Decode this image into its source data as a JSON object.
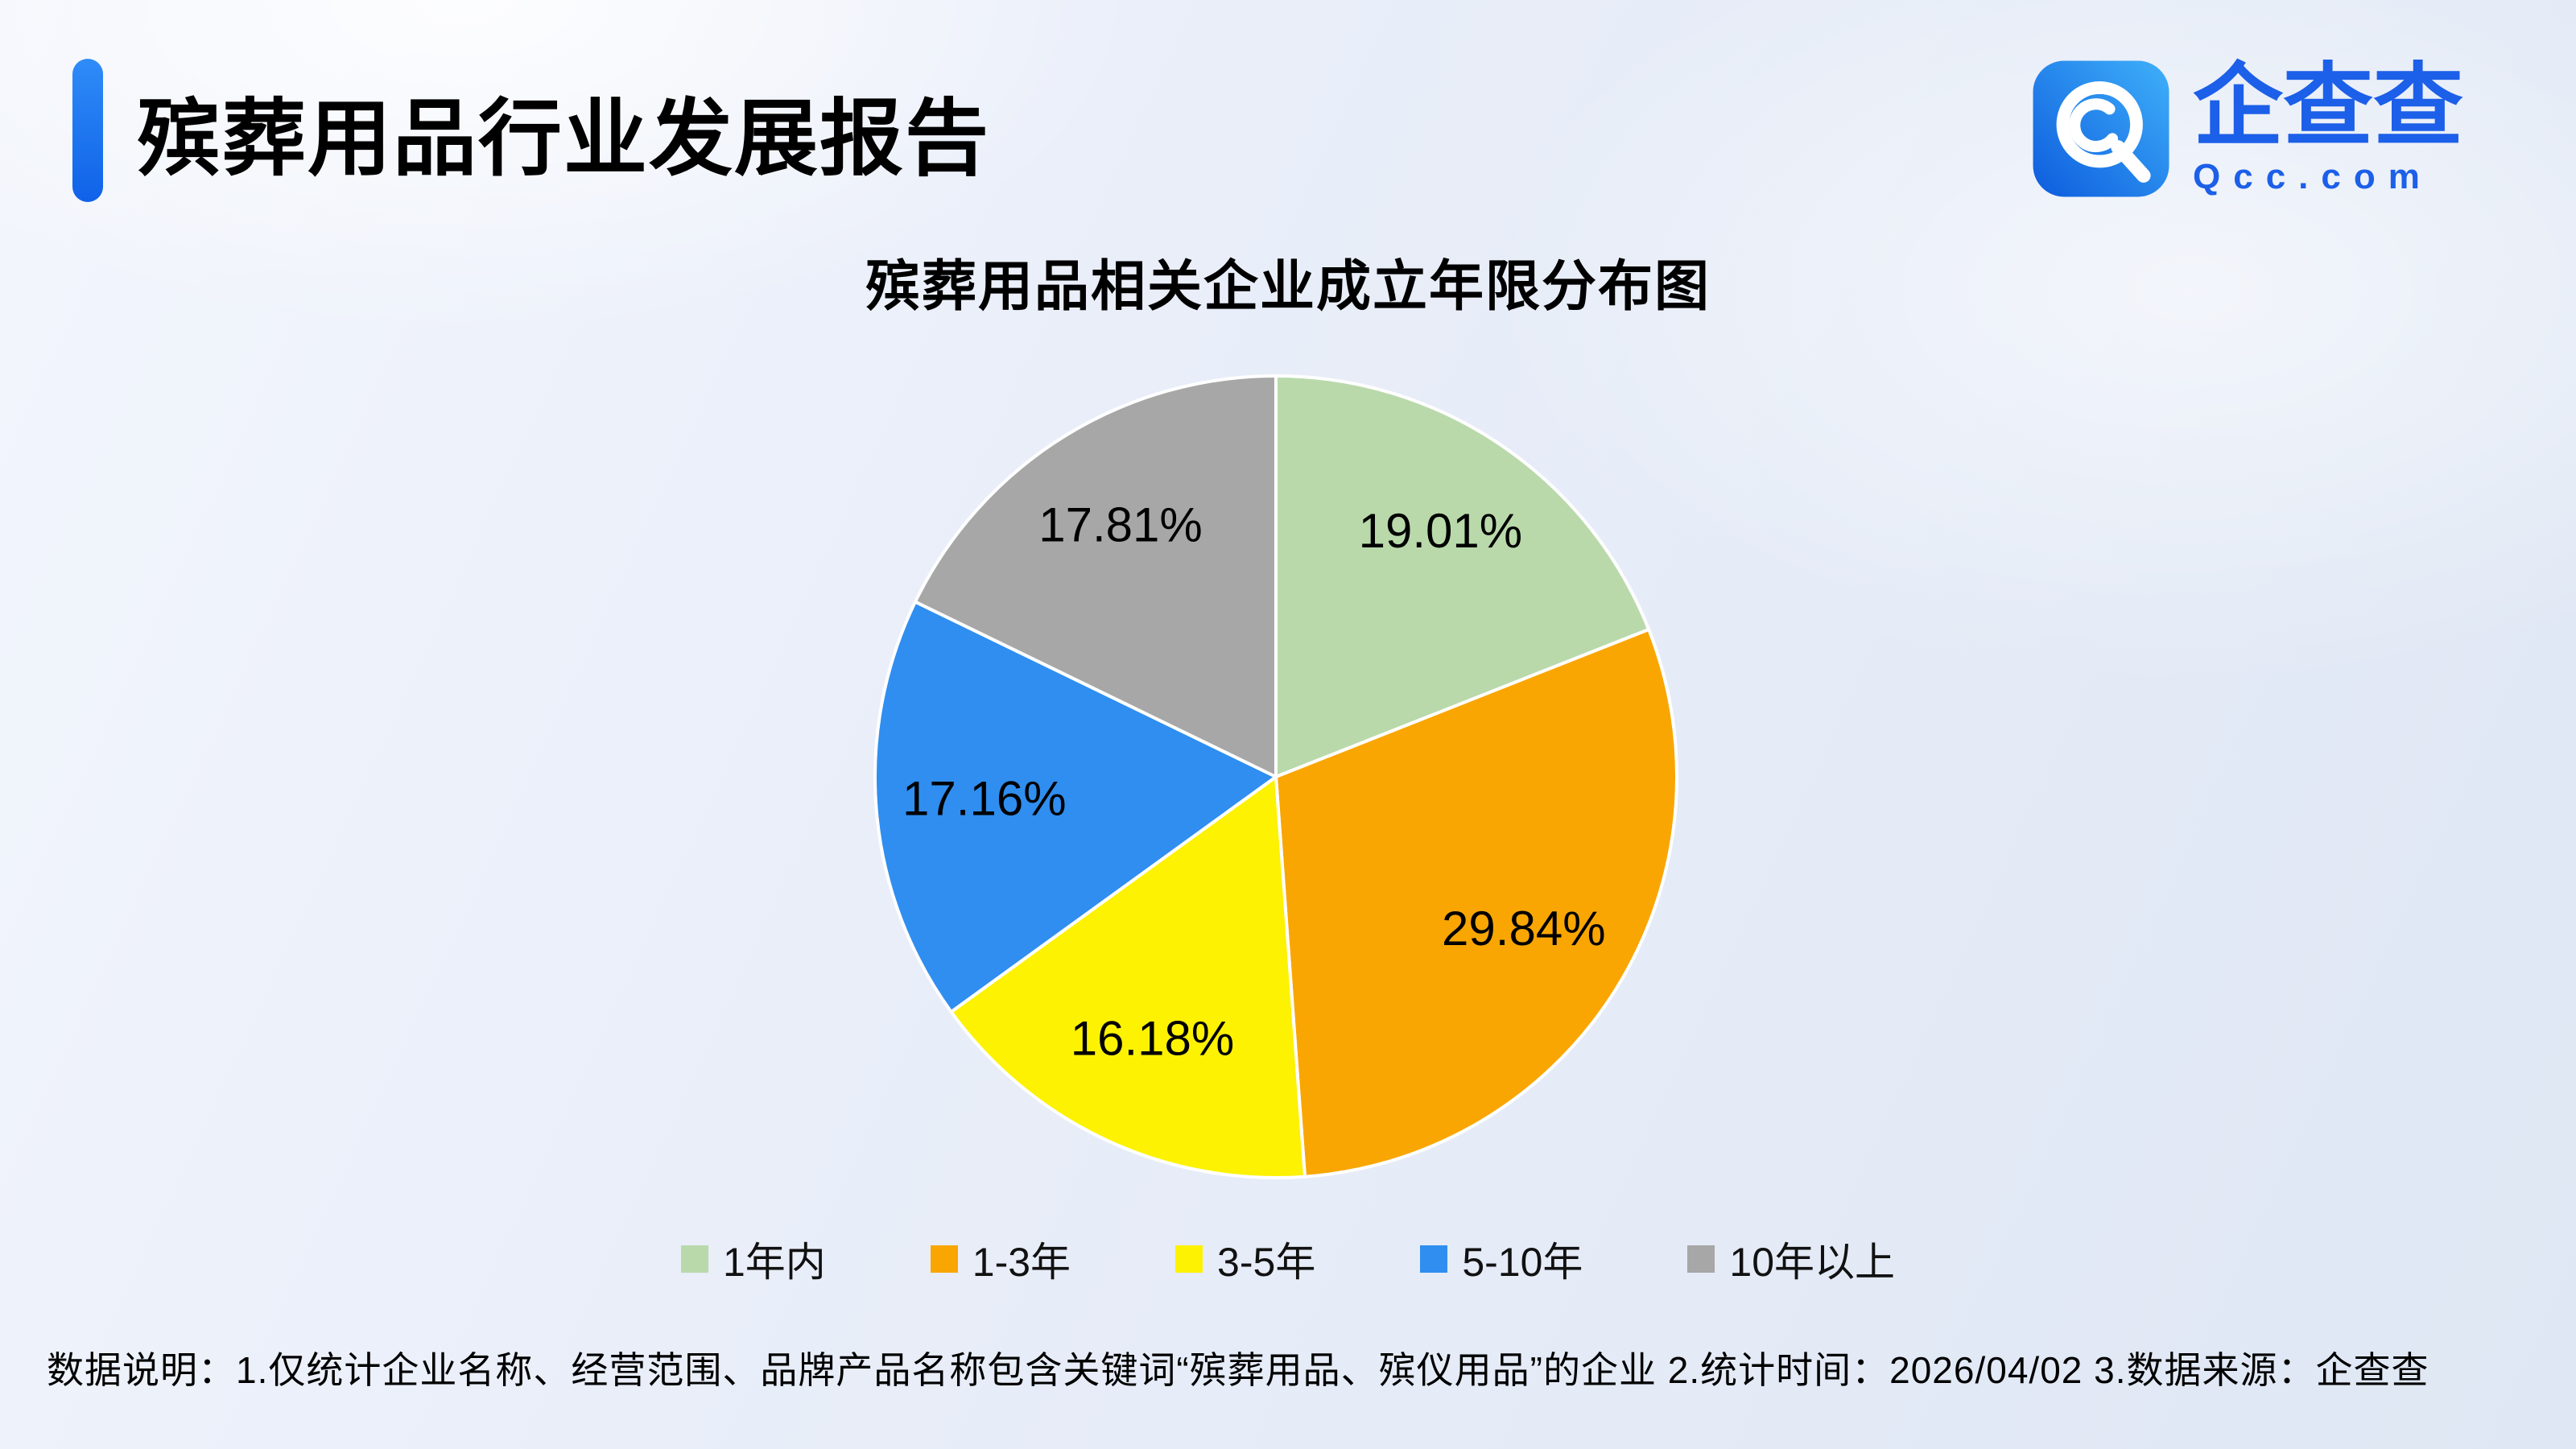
{
  "page": {
    "background_top": "#f3f6fc",
    "background_bottom": "#dfe7f4"
  },
  "header": {
    "title": "殡葬用品行业发展报告",
    "accent_color": "#1673f0"
  },
  "logo": {
    "brand_cn": "企查查",
    "brand_en": "Qcc.com",
    "brand_color": "#1c5fe8"
  },
  "chart_data": {
    "type": "pie",
    "title": "殡葬用品相关企业成立年限分布图",
    "start_angle_deg": 0,
    "direction": "clockwise",
    "legend_position": "bottom",
    "label_color": "#000000",
    "slices": [
      {
        "label": "1年内",
        "value": 19.01,
        "display": "19.01%",
        "color": "#b9d9ab"
      },
      {
        "label": "1-3年",
        "value": 29.84,
        "display": "29.84%",
        "color": "#f9a602"
      },
      {
        "label": "3-5年",
        "value": 16.18,
        "display": "16.18%",
        "color": "#fcf202"
      },
      {
        "label": "5-10年",
        "value": 17.16,
        "display": "17.16%",
        "color": "#2f8ef0"
      },
      {
        "label": "10年以上",
        "value": 17.81,
        "display": "17.81%",
        "color": "#a7a7a7"
      }
    ]
  },
  "footer": {
    "note": "数据说明：1.仅统计企业名称、经营范围、品牌产品名称包含关键词“殡葬用品、殡仪用品”的企业  2.统计时间：2026/04/02  3.数据来源：企查查"
  }
}
